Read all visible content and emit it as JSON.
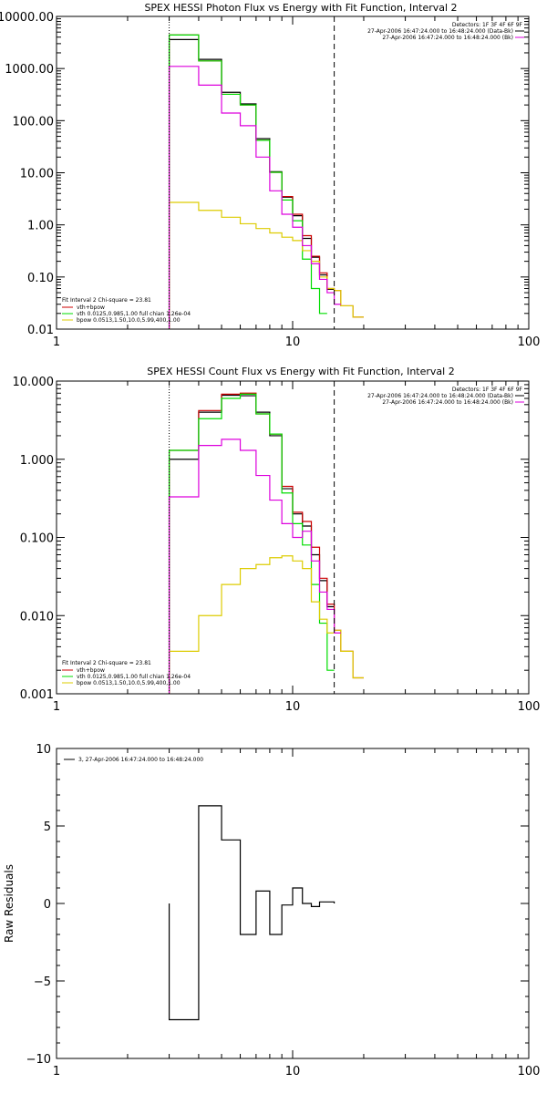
{
  "colors": {
    "data": "#000000",
    "total": "#cc0000",
    "vth": "#00dd00",
    "bpow": "#ddcc00",
    "background": "#dd00dd",
    "axis": "#000000"
  },
  "chart_data": [
    {
      "type": "line",
      "title": "SPEX HESSI Photon Flux vs Energy with Fit Function, Interval 2",
      "xlabel": "",
      "ylabel": "",
      "xscale": "log",
      "yscale": "log",
      "xlim": [
        1,
        100
      ],
      "ylim": [
        0.01,
        10000
      ],
      "xticks": [
        "1",
        "10",
        "100"
      ],
      "yticks": [
        "0.01",
        "0.10",
        "1.00",
        "10.00",
        "100.00",
        "1000.00",
        "10000.00"
      ],
      "fit_range": [
        3,
        15
      ],
      "legend_topright": [
        "Detectors: 1F 3F 4F 6F 9F",
        "27-Apr-2006 16:47:24.000 to 16:48:24.000 (Data-Bk)",
        "27-Apr-2006 16:47:24.000 to 16:48:24.000 (Bk)"
      ],
      "legend_bottomleft": [
        "Fit Interval 2   Chi-square = 23.81",
        "vth+bpow",
        "vth 0.0125,0.985,1.00  full chian 1.26e-04",
        "bpow 0.0513,1.50,10.0,5.99,400,1.00"
      ],
      "edges": [
        3,
        4,
        5,
        6,
        7,
        8,
        9,
        10,
        11,
        12,
        13,
        14,
        15,
        16,
        18,
        20
      ],
      "series": [
        {
          "name": "Data-Bk",
          "color": "data",
          "values": [
            3600,
            1500,
            350,
            210,
            45,
            10.5,
            3.4,
            1.5,
            0.55,
            0.24,
            0.11,
            0.058,
            null,
            null,
            null
          ]
        },
        {
          "name": "vth+bpow",
          "color": "total",
          "values": [
            4400,
            1400,
            320,
            200,
            42,
            10.2,
            3.5,
            1.6,
            0.62,
            0.25,
            0.12,
            0.06,
            0.055,
            0.028,
            0.017
          ]
        },
        {
          "name": "vth",
          "color": "vth",
          "values": [
            4400,
            1400,
            320,
            200,
            42,
            10.2,
            3.0,
            1.2,
            0.22,
            0.06,
            0.02,
            null,
            null,
            null,
            null
          ]
        },
        {
          "name": "bpow",
          "color": "bpow",
          "values": [
            2.7,
            1.9,
            1.4,
            1.05,
            0.85,
            0.7,
            0.58,
            0.5,
            0.32,
            0.2,
            0.1,
            0.06,
            0.055,
            0.028,
            0.017
          ]
        },
        {
          "name": "Bk",
          "color": "background",
          "values": [
            1100,
            480,
            140,
            80,
            20,
            4.5,
            1.6,
            0.9,
            0.4,
            0.18,
            0.09,
            0.05,
            0.03,
            null,
            null
          ]
        }
      ]
    },
    {
      "type": "line",
      "title": "SPEX HESSI Count Flux vs Energy with Fit Function, Interval 2",
      "xlabel": "",
      "ylabel": "",
      "xscale": "log",
      "yscale": "log",
      "xlim": [
        1,
        100
      ],
      "ylim": [
        0.001,
        10
      ],
      "xticks": [
        "1",
        "10",
        "100"
      ],
      "yticks": [
        "0.001",
        "0.010",
        "0.100",
        "1.000",
        "10.000"
      ],
      "fit_range": [
        3,
        15
      ],
      "legend_topright": [
        "Detectors: 1F 3F 4F 6F 9F",
        "27-Apr-2006 16:47:24.000 to 16:48:24.000 (Data-Bk)",
        "27-Apr-2006 16:47:24.000 to 16:48:24.000 (Bk)"
      ],
      "legend_bottomleft": [
        "Fit Interval 2   Chi-square = 23.81",
        "vth+bpow",
        "vth 0.0125,0.985,1.00  full chian 1.26e-04",
        "bpow 0.0513,1.50,10.0,5.99,400,1.00"
      ],
      "edges": [
        3,
        4,
        5,
        6,
        7,
        8,
        9,
        10,
        11,
        12,
        13,
        14,
        15,
        16,
        18,
        20
      ],
      "series": [
        {
          "name": "Data-Bk",
          "color": "data",
          "values": [
            1.0,
            4.0,
            6.6,
            6.5,
            4.0,
            2.0,
            0.42,
            0.2,
            0.14,
            0.06,
            0.028,
            0.013,
            null,
            null,
            null
          ]
        },
        {
          "name": "vth+bpow",
          "color": "total",
          "values": [
            1.3,
            4.2,
            6.8,
            7.0,
            3.8,
            2.1,
            0.45,
            0.21,
            0.16,
            0.075,
            0.03,
            0.014,
            0.0065,
            0.0035,
            0.0016
          ]
        },
        {
          "name": "vth",
          "color": "vth",
          "values": [
            1.3,
            3.3,
            6.0,
            6.8,
            3.8,
            2.1,
            0.37,
            0.15,
            0.08,
            0.025,
            0.008,
            0.002,
            null,
            null,
            null
          ]
        },
        {
          "name": "bpow",
          "color": "bpow",
          "values": [
            0.0035,
            0.01,
            0.025,
            0.04,
            0.045,
            0.055,
            0.058,
            0.05,
            0.04,
            0.015,
            0.009,
            0.006,
            0.0065,
            0.0035,
            0.0016
          ]
        },
        {
          "name": "Bk",
          "color": "background",
          "values": [
            0.33,
            1.5,
            1.8,
            1.3,
            0.62,
            0.3,
            0.15,
            0.1,
            0.12,
            0.05,
            0.02,
            0.012,
            0.006,
            null,
            null
          ]
        }
      ]
    },
    {
      "type": "line",
      "title": "",
      "xlabel": "",
      "ylabel": "Raw Residuals",
      "xscale": "log",
      "yscale": "linear",
      "xlim": [
        1,
        100
      ],
      "ylim": [
        -10,
        10
      ],
      "xticks": [
        "1",
        "10",
        "100"
      ],
      "yticks": [
        "−10",
        "−5",
        "0",
        "5",
        "10"
      ],
      "ytick_values": [
        -10,
        -5,
        0,
        5,
        10
      ],
      "legend_topleft": "3, 27-Apr-2006 16:47:24.000 to 16:48:24.000",
      "edges": [
        3,
        4,
        5,
        6,
        7,
        7.5,
        8,
        8.5,
        9,
        9.5,
        10,
        11,
        12,
        13,
        14,
        15
      ],
      "series": [
        {
          "name": "",
          "color": "data",
          "values": [
            -7.5,
            6.3,
            4.1,
            -2.0,
            0.8,
            0.8,
            -2.0,
            -2.0,
            -0.1,
            -0.1,
            1.0,
            0.0,
            -0.2,
            0.1,
            0.1
          ]
        }
      ]
    }
  ]
}
